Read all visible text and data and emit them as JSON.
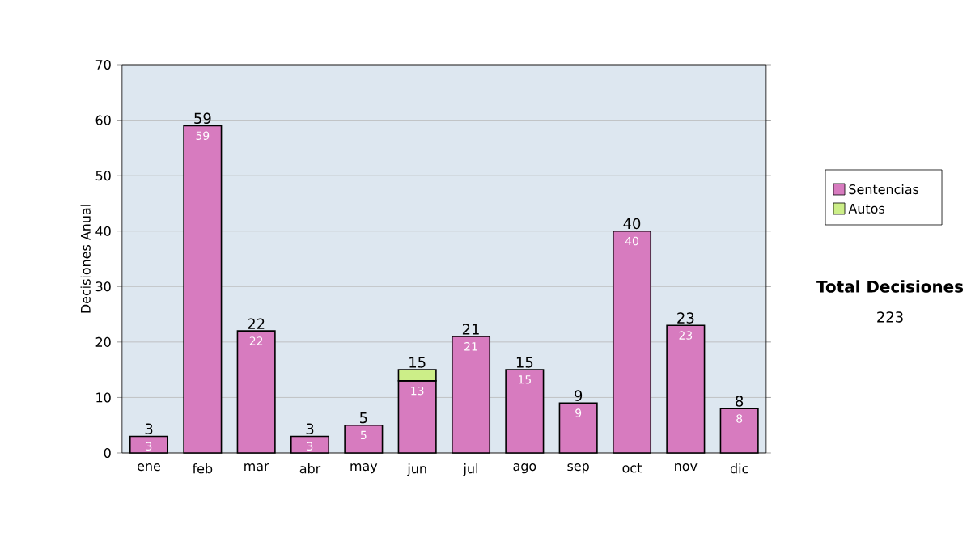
{
  "chart_data": {
    "type": "bar",
    "stacked": true,
    "ylabel": "Decisiones Anual",
    "categories": [
      "ene",
      "feb",
      "mar",
      "abr",
      "may",
      "jun",
      "jul",
      "ago",
      "sep",
      "oct",
      "nov",
      "dic"
    ],
    "series": [
      {
        "name": "Sentencias",
        "color": "#d77bbf",
        "values": [
          3,
          59,
          22,
          3,
          5,
          13,
          21,
          15,
          9,
          40,
          23,
          8
        ],
        "value_labels": [
          "3",
          "59",
          "22",
          "3",
          "5",
          "13",
          "21",
          "15",
          "9",
          "40",
          "23",
          "8"
        ]
      },
      {
        "name": "Autos",
        "color": "#ccee88",
        "values": [
          null,
          null,
          null,
          null,
          null,
          2,
          null,
          null,
          null,
          null,
          null,
          null
        ]
      }
    ],
    "totals": [
      "3",
      "59",
      "22",
      "3",
      "5",
      "15",
      "21",
      "15",
      "9",
      "40",
      "23",
      "8"
    ],
    "ylim": [
      0,
      70
    ],
    "yticks": [
      0,
      10,
      20,
      30,
      40,
      50,
      60,
      70
    ],
    "grid": "y",
    "legend": "right",
    "annotations": [
      "Total Decisiones",
      "223"
    ]
  }
}
